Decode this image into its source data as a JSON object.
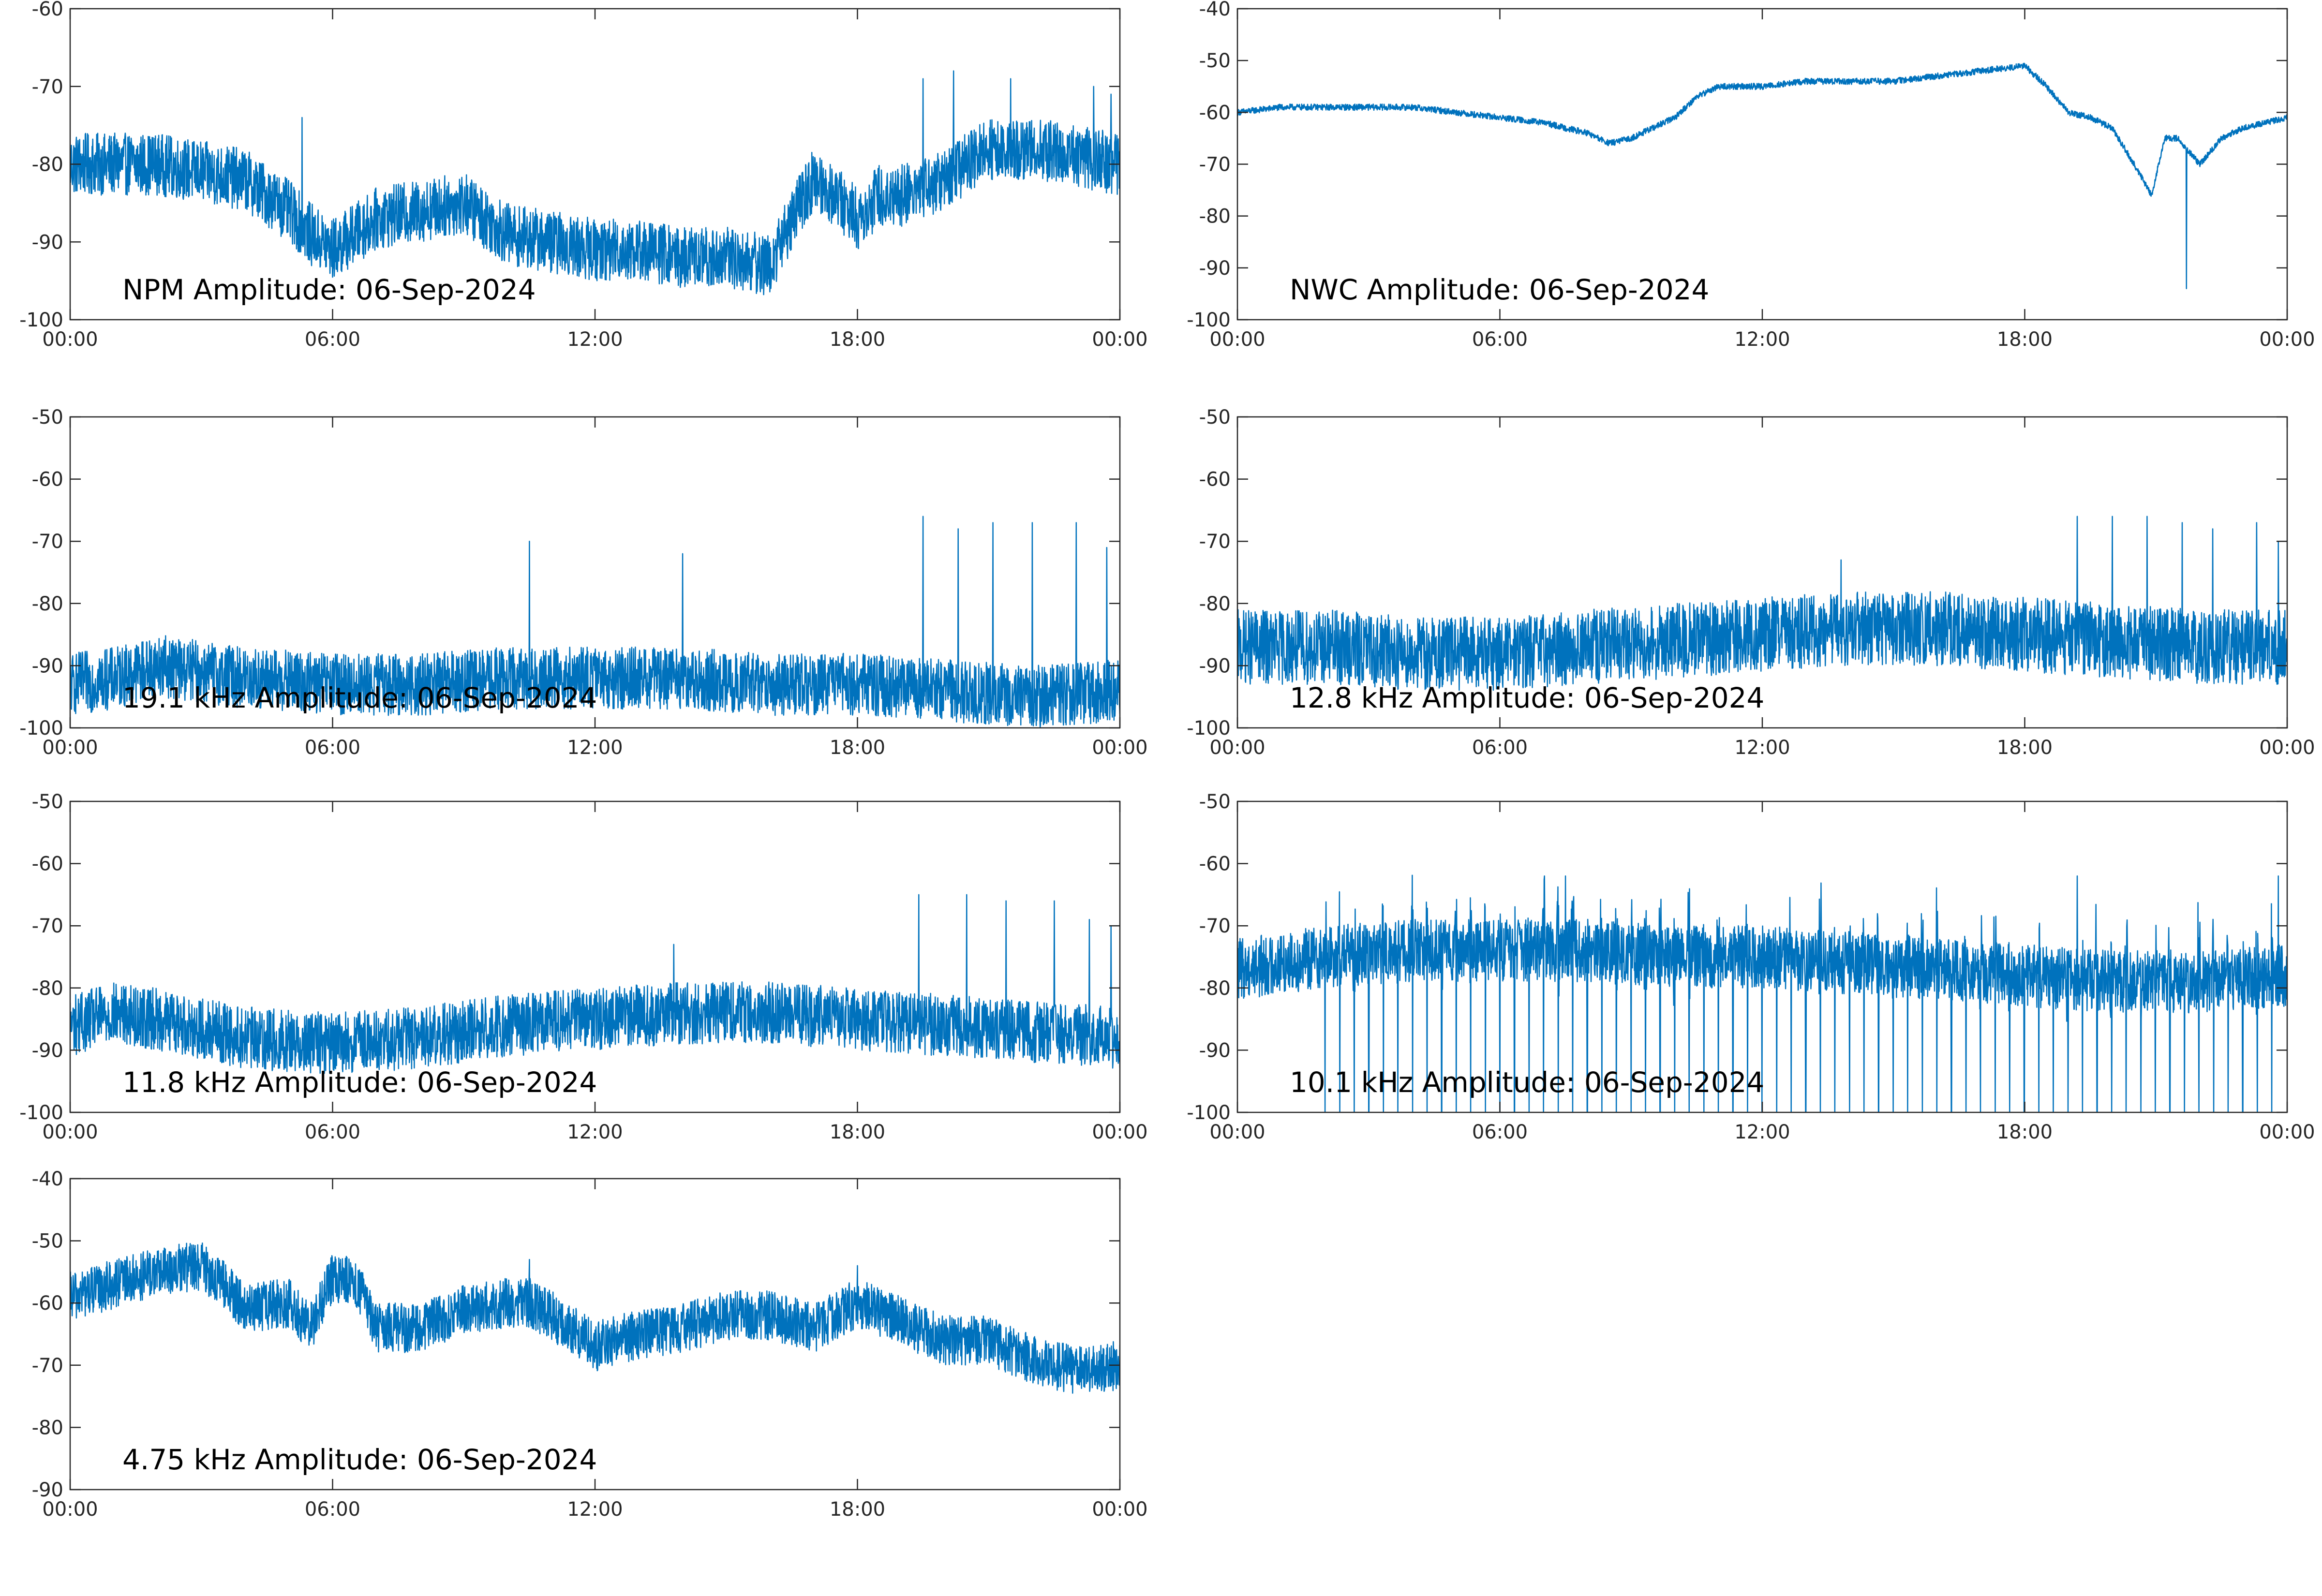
{
  "figure": {
    "background": "#ffffff",
    "axis_color": "#262626",
    "line_color": "#0072bd"
  },
  "chart_data": [
    {
      "type": "line",
      "title": "NPM Amplitude: 06-Sep-2024",
      "x_tick_labels": [
        "00:00",
        "06:00",
        "12:00",
        "18:00",
        "00:00"
      ],
      "ylim": [
        -100,
        -60
      ],
      "y_ticks": [
        -60,
        -70,
        -80,
        -90,
        -100
      ],
      "grid": false,
      "series": [
        {
          "color": "#0072bd",
          "x_hours": [
            0,
            1,
            2,
            3,
            4,
            5,
            5.5,
            6,
            6.5,
            7,
            8,
            9,
            9.5,
            10,
            11,
            12,
            13,
            14,
            15,
            16,
            16.5,
            17,
            17.5,
            18,
            18.5,
            19,
            20,
            21,
            22,
            23,
            24
          ],
          "y": [
            -80,
            -80,
            -80,
            -81,
            -82,
            -86,
            -89,
            -91,
            -89,
            -87,
            -86,
            -85,
            -87,
            -89,
            -90,
            -91,
            -91,
            -92,
            -92,
            -93,
            -87,
            -82,
            -84,
            -87,
            -84,
            -84,
            -82,
            -78,
            -78,
            -79,
            -80
          ],
          "noise": 4,
          "spikes": [
            [
              5.3,
              -74
            ],
            [
              19.5,
              -69
            ],
            [
              20.2,
              -68
            ],
            [
              21.5,
              -69
            ],
            [
              23.4,
              -70
            ],
            [
              23.8,
              -71
            ]
          ]
        }
      ]
    },
    {
      "type": "line",
      "title": "NWC Amplitude: 06-Sep-2024",
      "x_tick_labels": [
        "00:00",
        "06:00",
        "12:00",
        "18:00",
        "00:00"
      ],
      "ylim": [
        -100,
        -40
      ],
      "y_ticks": [
        -40,
        -50,
        -60,
        -70,
        -80,
        -90,
        -100
      ],
      "grid": false,
      "series": [
        {
          "color": "#0072bd",
          "x_hours": [
            0,
            1,
            2,
            3,
            4,
            5,
            6,
            7,
            8,
            8.5,
            9,
            10,
            10.5,
            11,
            12,
            13,
            14,
            15,
            16,
            17,
            18,
            18.5,
            19,
            19.5,
            20,
            20.5,
            20.9,
            21.2,
            21.5,
            22,
            22.5,
            23,
            24
          ],
          "y": [
            -60,
            -59,
            -59,
            -59,
            -59,
            -60,
            -61,
            -62,
            -64,
            -66,
            -65,
            -61,
            -57,
            -55,
            -55,
            -54,
            -54,
            -54,
            -53,
            -52,
            -51,
            -55,
            -60,
            -61,
            -63,
            -70,
            -76,
            -65,
            -65,
            -70,
            -65,
            -63,
            -61
          ],
          "noise": 0.6,
          "spikes": [
            [
              21.7,
              -94
            ]
          ]
        }
      ]
    },
    {
      "type": "line",
      "title": "19.1 kHz Amplitude: 06-Sep-2024",
      "x_tick_labels": [
        "00:00",
        "06:00",
        "12:00",
        "18:00",
        "00:00"
      ],
      "ylim": [
        -100,
        -50
      ],
      "y_ticks": [
        -50,
        -60,
        -70,
        -80,
        -90,
        -100
      ],
      "grid": false,
      "series": [
        {
          "color": "#0072bd",
          "x_hours": [
            0,
            1,
            2,
            4,
            6,
            8,
            10,
            12,
            14,
            16,
            18,
            20,
            22,
            24
          ],
          "y": [
            -93,
            -92,
            -90,
            -92,
            -93,
            -93,
            -92,
            -92,
            -92,
            -93,
            -93,
            -94,
            -95,
            -94
          ],
          "noise": 5,
          "spikes": [
            [
              10.5,
              -70
            ],
            [
              14,
              -72
            ],
            [
              19.5,
              -66
            ],
            [
              20.3,
              -68
            ],
            [
              21.1,
              -67
            ],
            [
              22,
              -67
            ],
            [
              23,
              -67
            ],
            [
              23.7,
              -71
            ]
          ]
        }
      ]
    },
    {
      "type": "line",
      "title": "12.8 kHz Amplitude: 06-Sep-2024",
      "x_tick_labels": [
        "00:00",
        "06:00",
        "12:00",
        "18:00",
        "00:00"
      ],
      "ylim": [
        -100,
        -50
      ],
      "y_ticks": [
        -50,
        -60,
        -70,
        -80,
        -90,
        -100
      ],
      "grid": false,
      "series": [
        {
          "color": "#0072bd",
          "x_hours": [
            0,
            2,
            4,
            6,
            8,
            10,
            12,
            14,
            16,
            18,
            20,
            22,
            24
          ],
          "y": [
            -87,
            -87,
            -88,
            -88,
            -87,
            -86,
            -85,
            -84,
            -84,
            -85,
            -86,
            -87,
            -87
          ],
          "noise": 6,
          "spikes": [
            [
              13.8,
              -73
            ],
            [
              19.2,
              -66
            ],
            [
              20,
              -66
            ],
            [
              20.8,
              -66
            ],
            [
              21.6,
              -67
            ],
            [
              22.3,
              -68
            ],
            [
              23.3,
              -67
            ],
            [
              23.8,
              -70
            ]
          ]
        }
      ]
    },
    {
      "type": "line",
      "title": "11.8 kHz Amplitude: 06-Sep-2024",
      "x_tick_labels": [
        "00:00",
        "06:00",
        "12:00",
        "18:00",
        "00:00"
      ],
      "ylim": [
        -100,
        -50
      ],
      "y_ticks": [
        -50,
        -60,
        -70,
        -80,
        -90,
        -100
      ],
      "grid": false,
      "series": [
        {
          "color": "#0072bd",
          "x_hours": [
            0,
            1,
            2,
            4,
            6,
            8,
            10,
            12,
            14,
            16,
            18,
            20,
            22,
            24
          ],
          "y": [
            -86,
            -84,
            -85,
            -88,
            -89,
            -88,
            -86,
            -85,
            -84,
            -84,
            -85,
            -86,
            -87,
            -88
          ],
          "noise": 5,
          "spikes": [
            [
              13.8,
              -73
            ],
            [
              19.4,
              -65
            ],
            [
              20.5,
              -65
            ],
            [
              21.4,
              -66
            ],
            [
              22.5,
              -66
            ],
            [
              23.3,
              -69
            ],
            [
              23.8,
              -70
            ]
          ]
        }
      ]
    },
    {
      "type": "line",
      "title": "10.1 kHz Amplitude: 06-Sep-2024",
      "x_tick_labels": [
        "00:00",
        "06:00",
        "12:00",
        "18:00",
        "00:00"
      ],
      "ylim": [
        -100,
        -50
      ],
      "y_ticks": [
        -50,
        -60,
        -70,
        -80,
        -90,
        -100
      ],
      "grid": false,
      "series": [
        {
          "color": "#0072bd",
          "x_hours": [
            0,
            2,
            4,
            6,
            8,
            10,
            12,
            14,
            16,
            18,
            20,
            22,
            24
          ],
          "y": [
            -77,
            -75,
            -74,
            -74,
            -74,
            -75,
            -75,
            -76,
            -77,
            -78,
            -79,
            -79,
            -78
          ],
          "noise": 5,
          "dropouts": {
            "start_hour": 2.0,
            "end_hour": 23.8,
            "period_hours": 0.333,
            "min": -100
          },
          "spikes": [
            [
              7.5,
              -62
            ],
            [
              19.2,
              -62
            ],
            [
              23.8,
              -62
            ]
          ]
        }
      ]
    },
    {
      "type": "line",
      "title": "4.75 kHz Amplitude: 06-Sep-2024",
      "x_tick_labels": [
        "00:00",
        "06:00",
        "12:00",
        "18:00",
        "00:00"
      ],
      "ylim": [
        -90,
        -40
      ],
      "y_ticks": [
        -40,
        -50,
        -60,
        -70,
        -80,
        -90
      ],
      "grid": false,
      "series": [
        {
          "color": "#0072bd",
          "x_hours": [
            0,
            1,
            2,
            3,
            3.5,
            4,
            5,
            5.5,
            6,
            6.5,
            7,
            8,
            9,
            10,
            10.5,
            11,
            12,
            13,
            14,
            15,
            16,
            17,
            18,
            19,
            20,
            21,
            22,
            23,
            24
          ],
          "y": [
            -59,
            -57,
            -55,
            -54,
            -57,
            -61,
            -60,
            -64,
            -56,
            -56,
            -64,
            -64,
            -61,
            -60,
            -60,
            -62,
            -67,
            -65,
            -64,
            -62,
            -62,
            -64,
            -60,
            -63,
            -66,
            -66,
            -69,
            -71,
            -70
          ],
          "noise": 4,
          "spikes": [
            [
              10.5,
              -53
            ],
            [
              18,
              -54
            ]
          ]
        }
      ]
    }
  ]
}
